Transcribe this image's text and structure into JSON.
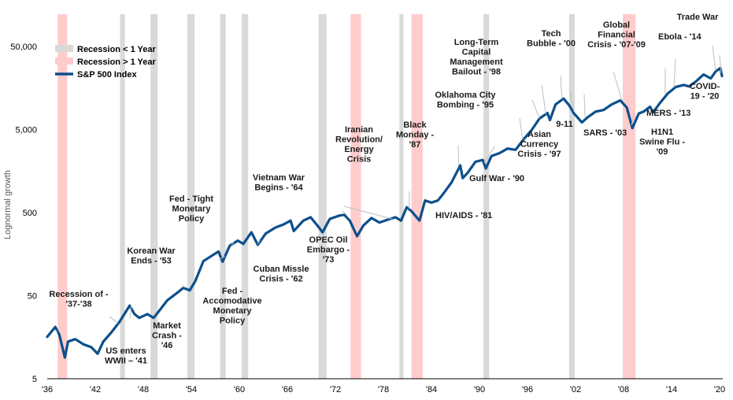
{
  "chart_data": {
    "type": "line",
    "ylabel": "Lognormal growth",
    "y_scale": "log",
    "ylim": [
      5,
      80000
    ],
    "xlim": [
      1936,
      2020
    ],
    "x_tick_values": [
      1936,
      1942,
      1948,
      1954,
      1960,
      1966,
      1972,
      1978,
      1984,
      1990,
      1996,
      2002,
      2008,
      2014,
      2020
    ],
    "x_tick_labels": [
      "'36",
      "'42",
      "'48",
      "'54",
      "'60",
      "'66",
      "'72",
      "'78",
      "'84",
      "'90",
      "'96",
      "'02",
      "'08",
      "'14",
      "'20"
    ],
    "y_tick_values": [
      5,
      50,
      500,
      5000,
      50000
    ],
    "y_tick_labels": [
      "5",
      "50",
      "500",
      "5,000",
      "50,000"
    ],
    "grid": false,
    "legend_position": "top-left",
    "legend": [
      {
        "label": "Recession < 1 Year",
        "color": "#d9d9d9",
        "kind": "box"
      },
      {
        "label": "Recession > 1 Year",
        "color": "#ffcccc",
        "kind": "box"
      },
      {
        "label": "S&P 500 Index",
        "color": "#0d4f8b",
        "kind": "line"
      }
    ],
    "series": [
      {
        "name": "S&P 500 Index",
        "color": "#0d4f8b",
        "points": [
          [
            1936.0,
            16
          ],
          [
            1937.0,
            21
          ],
          [
            1937.5,
            17
          ],
          [
            1938.2,
            9
          ],
          [
            1938.6,
            14
          ],
          [
            1939.5,
            15
          ],
          [
            1940.5,
            13
          ],
          [
            1941.5,
            12
          ],
          [
            1942.3,
            10
          ],
          [
            1943.0,
            14
          ],
          [
            1944.0,
            18
          ],
          [
            1945.0,
            24
          ],
          [
            1946.3,
            38
          ],
          [
            1946.9,
            30
          ],
          [
            1947.5,
            27
          ],
          [
            1948.5,
            30
          ],
          [
            1949.3,
            27
          ],
          [
            1950.3,
            36
          ],
          [
            1951.0,
            44
          ],
          [
            1952.0,
            52
          ],
          [
            1953.0,
            62
          ],
          [
            1953.8,
            58
          ],
          [
            1954.5,
            75
          ],
          [
            1955.5,
            130
          ],
          [
            1956.5,
            150
          ],
          [
            1957.4,
            170
          ],
          [
            1957.9,
            128
          ],
          [
            1958.8,
            200
          ],
          [
            1959.8,
            230
          ],
          [
            1960.5,
            210
          ],
          [
            1961.5,
            290
          ],
          [
            1962.3,
            205
          ],
          [
            1963.3,
            280
          ],
          [
            1964.5,
            330
          ],
          [
            1965.5,
            360
          ],
          [
            1966.4,
            400
          ],
          [
            1966.8,
            300
          ],
          [
            1968.0,
            400
          ],
          [
            1968.9,
            440
          ],
          [
            1969.8,
            345
          ],
          [
            1970.4,
            290
          ],
          [
            1971.3,
            420
          ],
          [
            1972.5,
            460
          ],
          [
            1973.1,
            470
          ],
          [
            1973.8,
            400
          ],
          [
            1974.7,
            260
          ],
          [
            1975.5,
            350
          ],
          [
            1976.5,
            430
          ],
          [
            1977.5,
            380
          ],
          [
            1978.5,
            410
          ],
          [
            1979.5,
            440
          ],
          [
            1980.2,
            400
          ],
          [
            1980.9,
            580
          ],
          [
            1981.5,
            520
          ],
          [
            1982.5,
            400
          ],
          [
            1983.2,
            700
          ],
          [
            1984.0,
            660
          ],
          [
            1984.8,
            700
          ],
          [
            1985.5,
            850
          ],
          [
            1986.5,
            1150
          ],
          [
            1987.6,
            1850
          ],
          [
            1987.9,
            1300
          ],
          [
            1988.5,
            1500
          ],
          [
            1989.5,
            2050
          ],
          [
            1990.4,
            2150
          ],
          [
            1990.8,
            1700
          ],
          [
            1991.5,
            2400
          ],
          [
            1992.5,
            2600
          ],
          [
            1993.5,
            2950
          ],
          [
            1994.5,
            2850
          ],
          [
            1995.5,
            3800
          ],
          [
            1996.5,
            4900
          ],
          [
            1997.5,
            6800
          ],
          [
            1998.5,
            7900
          ],
          [
            1998.8,
            6500
          ],
          [
            1999.5,
            10000
          ],
          [
            2000.5,
            11800
          ],
          [
            2001.2,
            9800
          ],
          [
            2001.8,
            7800
          ],
          [
            2002.8,
            6100
          ],
          [
            2003.5,
            7000
          ],
          [
            2004.5,
            8200
          ],
          [
            2005.5,
            8600
          ],
          [
            2006.5,
            10000
          ],
          [
            2007.6,
            11200
          ],
          [
            2008.4,
            9200
          ],
          [
            2009.1,
            5200
          ],
          [
            2009.9,
            7800
          ],
          [
            2010.5,
            8200
          ],
          [
            2011.3,
            9400
          ],
          [
            2011.7,
            8100
          ],
          [
            2012.5,
            10300
          ],
          [
            2013.5,
            13500
          ],
          [
            2014.5,
            16200
          ],
          [
            2015.5,
            17200
          ],
          [
            2016.2,
            16500
          ],
          [
            2017.0,
            18800
          ],
          [
            2018.0,
            23000
          ],
          [
            2018.9,
            20600
          ],
          [
            2019.5,
            25000
          ],
          [
            2020.1,
            27500
          ],
          [
            2020.3,
            22000
          ]
        ]
      }
    ],
    "recessions": [
      {
        "start": 1937.3,
        "end": 1938.5,
        "type": "long"
      },
      {
        "start": 1945.1,
        "end": 1945.7,
        "type": "short"
      },
      {
        "start": 1948.9,
        "end": 1949.8,
        "type": "short"
      },
      {
        "start": 1953.5,
        "end": 1954.4,
        "type": "short"
      },
      {
        "start": 1957.6,
        "end": 1958.3,
        "type": "short"
      },
      {
        "start": 1960.3,
        "end": 1961.1,
        "type": "short"
      },
      {
        "start": 1969.9,
        "end": 1970.9,
        "type": "short"
      },
      {
        "start": 1973.9,
        "end": 1975.2,
        "type": "long"
      },
      {
        "start": 1980.0,
        "end": 1980.5,
        "type": "short"
      },
      {
        "start": 1981.5,
        "end": 1982.9,
        "type": "long"
      },
      {
        "start": 1990.5,
        "end": 1991.2,
        "type": "short"
      },
      {
        "start": 2001.2,
        "end": 2001.9,
        "type": "short"
      },
      {
        "start": 2007.9,
        "end": 2009.5,
        "type": "long"
      }
    ],
    "annotations": [
      {
        "lines": [
          "Recession of -",
          "'37-'38"
        ],
        "x": 1937.2,
        "y": 18
      },
      {
        "lines": [
          "US enters",
          "WWII – '41"
        ],
        "x": 1943.8,
        "y": 28
      },
      {
        "lines": [
          "Market",
          "Crash -",
          "'46"
        ],
        "x": 1946.5,
        "y": 38
      },
      {
        "lines": [
          "Korean War",
          "Ends - '53"
        ],
        "x": 1953.1,
        "y": 63
      },
      {
        "lines": [
          "Fed - Tight",
          "Monetary",
          "Policy"
        ],
        "x": 1959.3,
        "y": 220
      },
      {
        "lines": [
          "Fed -",
          "Accomodative",
          "Monetary",
          "Policy"
        ],
        "x": 1958.2,
        "y": 150
      },
      {
        "lines": [
          "Vietnam War",
          "Begins - '64"
        ],
        "x": 1964.1,
        "y": 350
      },
      {
        "lines": [
          "Cuban Missle",
          "Crisis - '62"
        ],
        "x": 1962.3,
        "y": 210
      },
      {
        "lines": [
          "Iranian",
          "Revolution/",
          "Energy",
          "Crisis"
        ],
        "x": 1979.1,
        "y": 420
      },
      {
        "lines": [
          "OPEC Oil",
          "Embargo -",
          "'73"
        ],
        "x": 1973.4,
        "y": 470
      },
      {
        "lines": [
          "Black",
          "Monday -",
          "'87"
        ],
        "x": 1987.4,
        "y": 1850
      },
      {
        "lines": [
          "HIV/AIDS - '81"
        ],
        "x": 1981.2,
        "y": 560
      },
      {
        "lines": [
          "Oklahoma City",
          "Bombing - '95"
        ],
        "x": 1995.4,
        "y": 3800
      },
      {
        "lines": [
          "Gulf War - '90"
        ],
        "x": 1990.6,
        "y": 2000
      },
      {
        "lines": [
          "Long-Term",
          "Capital",
          "Management",
          "Bailout - '98"
        ],
        "x": 1998.3,
        "y": 7600
      },
      {
        "lines": [
          "Asian",
          "Currency",
          "Crisis - '97"
        ],
        "x": 1997.5,
        "y": 6800
      },
      {
        "lines": [
          "Tech",
          "Bubble - '00"
        ],
        "x": 2000.3,
        "y": 11600
      },
      {
        "lines": [
          "9-11"
        ],
        "x": 2001.8,
        "y": 8200
      },
      {
        "lines": [
          "SARS - '03"
        ],
        "x": 2003.2,
        "y": 6900
      },
      {
        "lines": [
          "Global",
          "Financial",
          "Crisis - '07-'09"
        ],
        "x": 2007.8,
        "y": 11300
      },
      {
        "lines": [
          "H1N1",
          "Swine Flu -",
          "'09"
        ],
        "x": 2009.0,
        "y": 5600
      },
      {
        "lines": [
          "MERS - '13"
        ],
        "x": 2013.2,
        "y": 13500
      },
      {
        "lines": [
          "Ebola - '14"
        ],
        "x": 2014.3,
        "y": 16200
      },
      {
        "lines": [
          "Trade War"
        ],
        "x": 2019.5,
        "y": 25500
      },
      {
        "lines": [
          "COVID-",
          "19 - '20"
        ],
        "x": 2020.2,
        "y": 24000
      }
    ]
  }
}
